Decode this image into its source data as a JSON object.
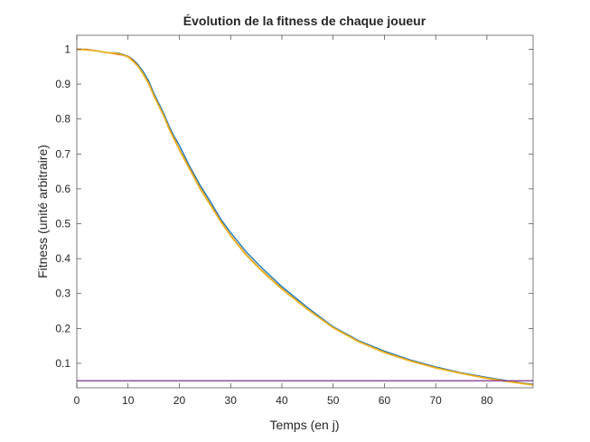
{
  "chart_data": {
    "type": "line",
    "title": "Évolution de la fitness de chaque joueur",
    "xlabel": "Temps (en j)",
    "ylabel": "Fitness (unité arbitraire)",
    "xlim": [
      0,
      89
    ],
    "ylim": [
      0.03,
      1.04
    ],
    "x_ticks": [
      0,
      10,
      20,
      30,
      40,
      50,
      60,
      70,
      80
    ],
    "y_ticks": [
      0.1,
      0.2,
      0.3,
      0.4,
      0.5,
      0.6,
      0.7,
      0.8,
      0.9,
      1
    ],
    "x_tick_labels": [
      "0",
      "10",
      "20",
      "30",
      "40",
      "50",
      "60",
      "70",
      "80"
    ],
    "y_tick_labels": [
      "0.1",
      "0.2",
      "0.3",
      "0.4",
      "0.5",
      "0.6",
      "0.7",
      "0.8",
      "0.9",
      "1"
    ],
    "grid": false,
    "legend": "none",
    "series": [
      {
        "color": "#0072bd",
        "x": [
          0,
          2,
          4,
          6,
          8,
          10,
          11,
          12,
          13,
          14,
          15,
          16,
          17,
          18,
          19,
          20,
          22,
          24,
          26,
          28,
          30,
          33,
          36,
          40,
          45,
          50,
          55,
          60,
          65,
          70,
          75,
          80,
          85,
          89
        ],
        "y": [
          1.0,
          1.0,
          0.995,
          0.99,
          0.99,
          0.98,
          0.97,
          0.955,
          0.935,
          0.91,
          0.875,
          0.845,
          0.815,
          0.78,
          0.75,
          0.725,
          0.665,
          0.612,
          0.565,
          0.515,
          0.475,
          0.42,
          0.375,
          0.32,
          0.26,
          0.205,
          0.165,
          0.135,
          0.11,
          0.09,
          0.073,
          0.06,
          0.048,
          0.04
        ]
      },
      {
        "color": "#d95319",
        "x": [
          0,
          2,
          4,
          6,
          8,
          10,
          11,
          12,
          13,
          14,
          15,
          16,
          17,
          18,
          19,
          20,
          22,
          24,
          26,
          28,
          30,
          33,
          36,
          40,
          45,
          50,
          55,
          60,
          65,
          70,
          75,
          80,
          85,
          89
        ],
        "y": [
          1.0,
          1.0,
          0.995,
          0.99,
          0.985,
          0.98,
          0.968,
          0.952,
          0.93,
          0.905,
          0.87,
          0.84,
          0.81,
          0.775,
          0.745,
          0.715,
          0.66,
          0.605,
          0.558,
          0.51,
          0.468,
          0.413,
          0.368,
          0.315,
          0.256,
          0.203,
          0.163,
          0.132,
          0.108,
          0.088,
          0.072,
          0.058,
          0.047,
          0.039
        ]
      },
      {
        "color": "#edb120",
        "x": [
          0,
          2,
          4,
          6,
          8,
          10,
          11,
          12,
          13,
          14,
          15,
          16,
          17,
          18,
          19,
          20,
          22,
          24,
          26,
          28,
          30,
          33,
          36,
          40,
          45,
          50,
          55,
          60,
          65,
          70,
          75,
          80,
          85,
          89
        ],
        "y": [
          1.0,
          0.998,
          0.995,
          0.99,
          0.988,
          0.978,
          0.965,
          0.95,
          0.928,
          0.902,
          0.868,
          0.838,
          0.808,
          0.772,
          0.742,
          0.712,
          0.657,
          0.602,
          0.555,
          0.508,
          0.466,
          0.411,
          0.366,
          0.313,
          0.255,
          0.202,
          0.162,
          0.131,
          0.107,
          0.087,
          0.071,
          0.057,
          0.046,
          0.038
        ]
      },
      {
        "color": "#7e2f8e",
        "x": [
          0,
          89
        ],
        "y": [
          0.05,
          0.05
        ]
      }
    ]
  }
}
